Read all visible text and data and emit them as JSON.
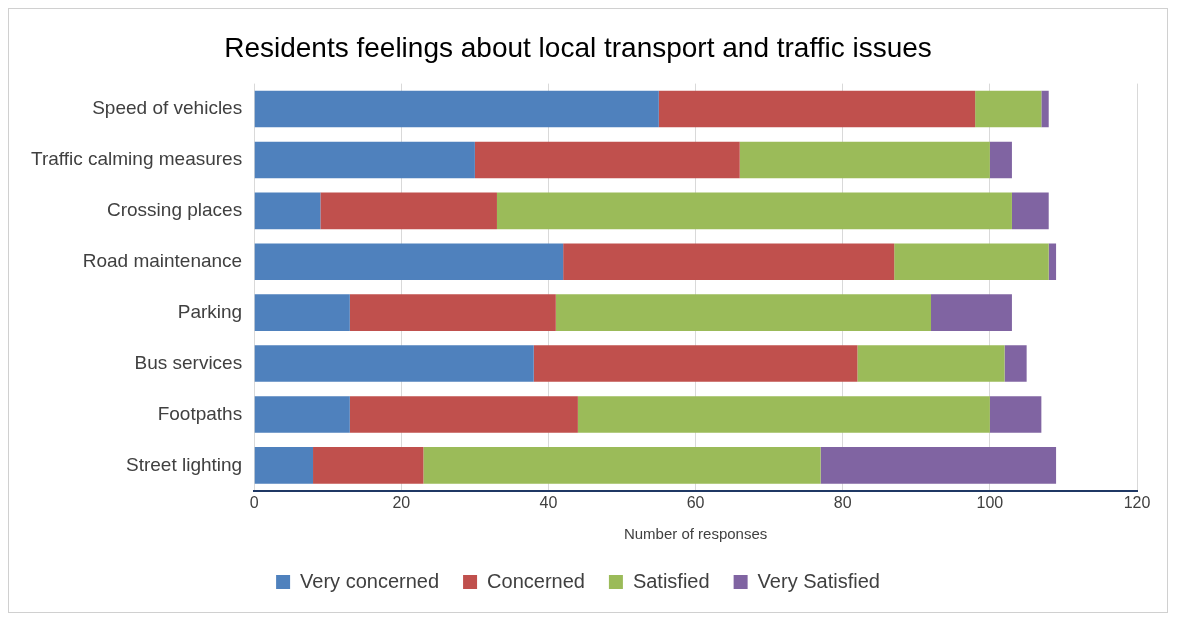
{
  "chart_data": {
    "type": "bar",
    "orientation": "horizontal",
    "stacked": true,
    "title": "Residents feelings about local transport and traffic issues",
    "xlabel": "Number of responses",
    "categories": [
      "Speed of vehicles",
      "Traffic calming measures",
      "Crossing places",
      "Road maintenance",
      "Parking",
      "Bus services",
      "Footpaths",
      "Street lighting"
    ],
    "series": [
      {
        "name": "Very concerned",
        "color": "#4f81bd",
        "values": [
          55,
          30,
          9,
          42,
          13,
          38,
          13,
          8
        ]
      },
      {
        "name": "Concerned",
        "color": "#c0504d",
        "values": [
          43,
          36,
          24,
          45,
          28,
          44,
          31,
          15
        ]
      },
      {
        "name": "Satisfied",
        "color": "#9bbb59",
        "values": [
          9,
          34,
          70,
          21,
          51,
          20,
          56,
          54
        ]
      },
      {
        "name": "Very Satisfied",
        "color": "#8064a2",
        "values": [
          1,
          3,
          5,
          1,
          11,
          3,
          7,
          32
        ]
      }
    ],
    "xlim": [
      0,
      120
    ],
    "xticks": [
      0,
      20,
      40,
      60,
      80,
      100,
      120
    ],
    "grid": "x",
    "legend": "bottom"
  }
}
